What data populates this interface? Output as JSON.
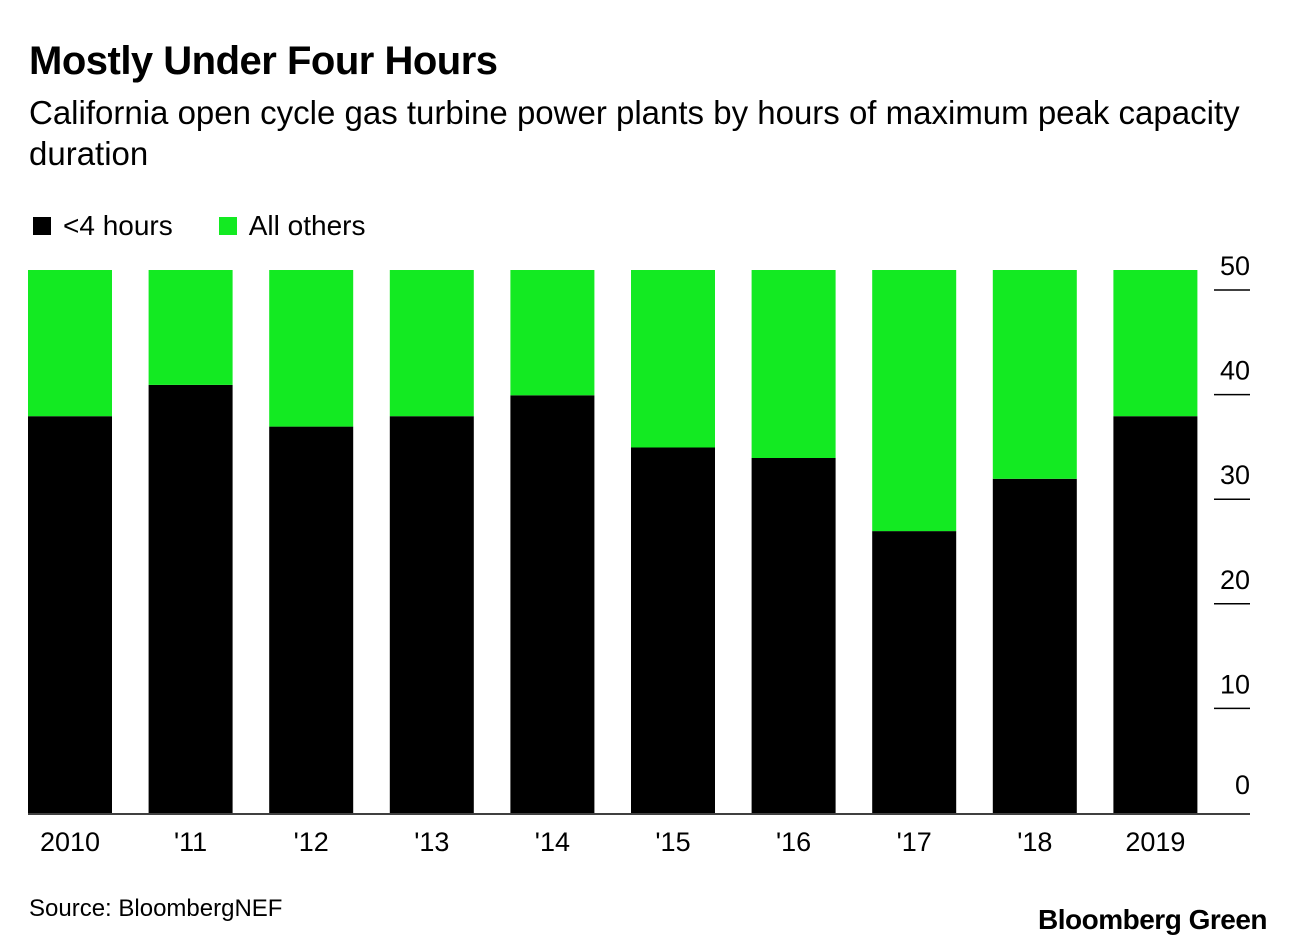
{
  "colors": {
    "under4": "#000000",
    "others": "#13ea22",
    "axis": "#000000",
    "background": "#ffffff"
  },
  "header": {
    "title": "Mostly Under Four Hours",
    "subtitle": "California open cycle gas turbine power plants by hours of maximum peak capacity duration"
  },
  "legend": {
    "items": [
      {
        "label": "<4 hours",
        "color": "#000000"
      },
      {
        "label": "All others",
        "color": "#13ea22"
      }
    ]
  },
  "footer": {
    "source": "Source: BloombergNEF",
    "brand": "Bloomberg Green"
  },
  "chart_data": {
    "type": "bar",
    "stacked": true,
    "title": "Mostly Under Four Hours",
    "subtitle": "California open cycle gas turbine power plants by hours of maximum peak capacity duration",
    "xlabel": "",
    "ylabel": "",
    "categories": [
      "2010",
      "'11",
      "'12",
      "'13",
      "'14",
      "'15",
      "'16",
      "'17",
      "'18",
      "2019"
    ],
    "series": [
      {
        "name": "<4 hours",
        "values": [
          38,
          41,
          37,
          38,
          40,
          35,
          34,
          27,
          32,
          38
        ]
      },
      {
        "name": "All others",
        "values": [
          14,
          11,
          15,
          14,
          12,
          17,
          18,
          25,
          20,
          14
        ]
      }
    ],
    "ylim": [
      0,
      50
    ],
    "yticks": [
      0,
      10,
      20,
      30,
      40,
      50
    ],
    "y_axis_side": "right",
    "grid": false,
    "legend_position": "top-left"
  }
}
